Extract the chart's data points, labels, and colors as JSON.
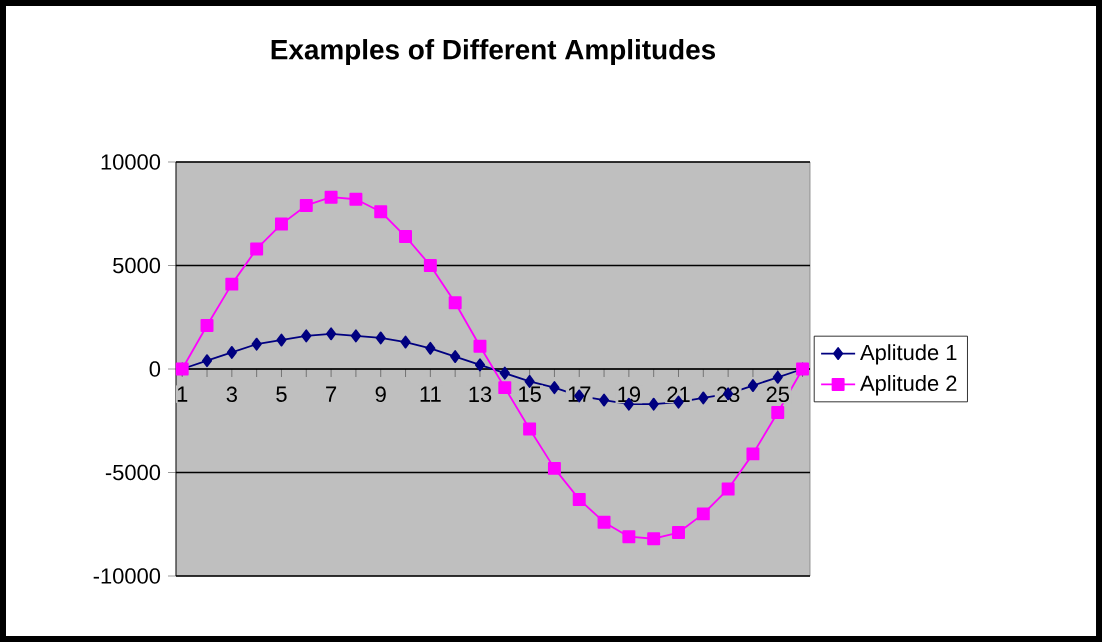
{
  "chart_data": {
    "type": "line",
    "title": "Examples of Different Amplitudes",
    "categories": [
      "1",
      null,
      "3",
      null,
      "5",
      null,
      "7",
      null,
      "9",
      null,
      "11",
      null,
      "13",
      null,
      "15",
      null,
      "17",
      null,
      "19",
      null,
      "21",
      null,
      "23",
      null,
      "25",
      null
    ],
    "series": [
      {
        "name": "Aplitude 1",
        "color": "#000080",
        "marker": "diamond",
        "values": [
          0,
          400,
          800,
          1200,
          1400,
          1600,
          1700,
          1600,
          1500,
          1300,
          1000,
          600,
          200,
          -200,
          -600,
          -900,
          -1300,
          -1500,
          -1700,
          -1700,
          -1600,
          -1400,
          -1200,
          -800,
          -400,
          0
        ]
      },
      {
        "name": "Aplitude 2",
        "color": "#ff00ff",
        "marker": "square",
        "values": [
          0,
          2100,
          4100,
          5800,
          7000,
          7900,
          8300,
          8200,
          7600,
          6400,
          5000,
          3200,
          1100,
          -900,
          -2900,
          -4800,
          -6300,
          -7400,
          -8100,
          -8200,
          -7900,
          -7000,
          -5800,
          -4100,
          -2100,
          0
        ]
      }
    ],
    "ylim": [
      -10000,
      10000
    ],
    "yticks": [
      -10000,
      -5000,
      0,
      5000,
      10000
    ],
    "grid": "y",
    "legend": "right",
    "line_style": "solid"
  }
}
